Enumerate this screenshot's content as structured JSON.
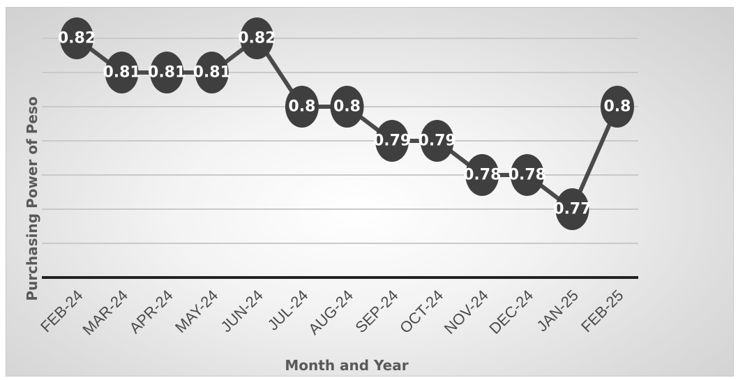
{
  "chart_data": {
    "type": "line",
    "title": "",
    "xlabel": "Month and Year",
    "ylabel": "Purchasing Power of Peso",
    "categories": [
      "FEB-24",
      "MAR-24",
      "APR-24",
      "MAY-24",
      "JUN-24",
      "JUL-24",
      "AUG-24",
      "SEP-24",
      "OCT-24",
      "NOV-24",
      "DEC-24",
      "JAN-25",
      "FEB-25"
    ],
    "series": [
      {
        "values": [
          0.82,
          0.81,
          0.81,
          0.81,
          0.82,
          0.8,
          0.8,
          0.79,
          0.79,
          0.78,
          0.78,
          0.77,
          0.8
        ],
        "labels": [
          "0.82",
          "0.81",
          "0.81",
          "0.81",
          "0.82",
          "0.8",
          "0.8",
          "0.79",
          "0.79",
          "0.78",
          "0.78",
          "0.77",
          "0.8"
        ],
        "color": "#4a4a4a",
        "marker_color": "#3f3f3f"
      }
    ],
    "ylim": [
      0.75,
      0.82
    ],
    "y_gridlines": [
      0.75,
      0.76,
      0.77,
      0.78,
      0.79,
      0.8,
      0.81,
      0.82
    ],
    "grid": true,
    "legend": "none",
    "colors": {
      "gridline": "#c9c9c9",
      "axis": "#222222",
      "tick_text": "#4a4a4a",
      "axis_title": "#595959",
      "label_text": "#ffffff"
    }
  }
}
